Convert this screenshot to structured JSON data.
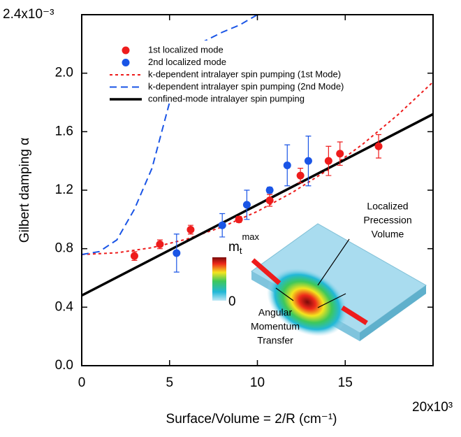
{
  "chart_data": {
    "type": "scatter",
    "xlabel": "Surface/Volume = 2/R (cm⁻¹)",
    "ylabel": "Gilbert damping α",
    "xlim": [
      0,
      20000
    ],
    "ylim": [
      0,
      0.0024
    ],
    "xticks": [
      0,
      {
        "value": 5000,
        "label": "5"
      },
      {
        "value": 10000,
        "label": "10"
      },
      {
        "value": 15000,
        "label": "15"
      },
      {
        "value": 20000,
        "label": "20x10³"
      }
    ],
    "yticks": [
      {
        "value": 0,
        "label": "0.0"
      },
      {
        "value": 0.0004,
        "label": "0.4"
      },
      {
        "value": 0.0008,
        "label": "0.8"
      },
      {
        "value": 0.0012,
        "label": "1.2"
      },
      {
        "value": 0.0016,
        "label": "1.6"
      },
      {
        "value": 0.002,
        "label": "2.0"
      },
      {
        "value": 0.0024,
        "label": "2.4x10⁻³"
      }
    ],
    "series": [
      {
        "name": "1st localized mode",
        "color": "#ee1c1c",
        "style": "marker",
        "x": [
          3000,
          4450,
          6200,
          8950,
          10700,
          12450,
          14050,
          14700,
          16900
        ],
        "values": [
          0.00075,
          0.00083,
          0.00093,
          0.001,
          0.00113,
          0.0013,
          0.0014,
          0.00145,
          0.0015
        ],
        "errors": [
          3e-05,
          3e-05,
          3e-05,
          2e-05,
          4e-05,
          5e-05,
          0.0001,
          8e-05,
          8e-05
        ]
      },
      {
        "name": "2nd localized mode",
        "color": "#1a55e6",
        "style": "marker",
        "x": [
          5400,
          8000,
          9400,
          10700,
          11700,
          12900
        ],
        "values": [
          0.00077,
          0.00096,
          0.0011,
          0.0012,
          0.00137,
          0.0014
        ],
        "errors": [
          0.00013,
          8e-05,
          0.0001,
          2e-05,
          0.00014,
          0.00017
        ]
      },
      {
        "name": "k-dependent intralayer spin pumping (1st Mode)",
        "color": "#ee1c1c",
        "style": "dotted",
        "x": [
          0,
          2000,
          4000,
          6000,
          8000,
          10000,
          12000,
          14000,
          16000,
          18000,
          20000
        ],
        "values": [
          0.00076,
          0.000772,
          0.000807,
          0.000866,
          0.000949,
          0.001055,
          0.001185,
          0.001338,
          0.001515,
          0.001716,
          0.00194
        ]
      },
      {
        "name": "k-dependent intralayer spin pumping (2nd Mode)",
        "color": "#1a55e6",
        "style": "dashed",
        "x": [
          0,
          1000,
          2000,
          3000,
          4000,
          5000,
          6000,
          7000,
          8000,
          9000,
          10000
        ],
        "values": [
          0.00076,
          0.00078,
          0.00086,
          0.00107,
          0.00135,
          0.0018,
          0.00215,
          0.00222,
          0.00228,
          0.00233,
          0.0024
        ]
      },
      {
        "name": "confined-mode intralayer spin pumping",
        "color": "#000000",
        "style": "solid",
        "x": [
          0,
          20000
        ],
        "values": [
          0.00048,
          0.00172
        ]
      }
    ],
    "annotations": {
      "volume": [
        "Localized",
        "Precession",
        "Volume"
      ],
      "transfer": [
        "Angular",
        "Momentum",
        "Transfer"
      ],
      "colorbar_max": "m",
      "colorbar_max_sub": "t",
      "colorbar_max_sup": "max",
      "colorbar_min": "0"
    }
  }
}
